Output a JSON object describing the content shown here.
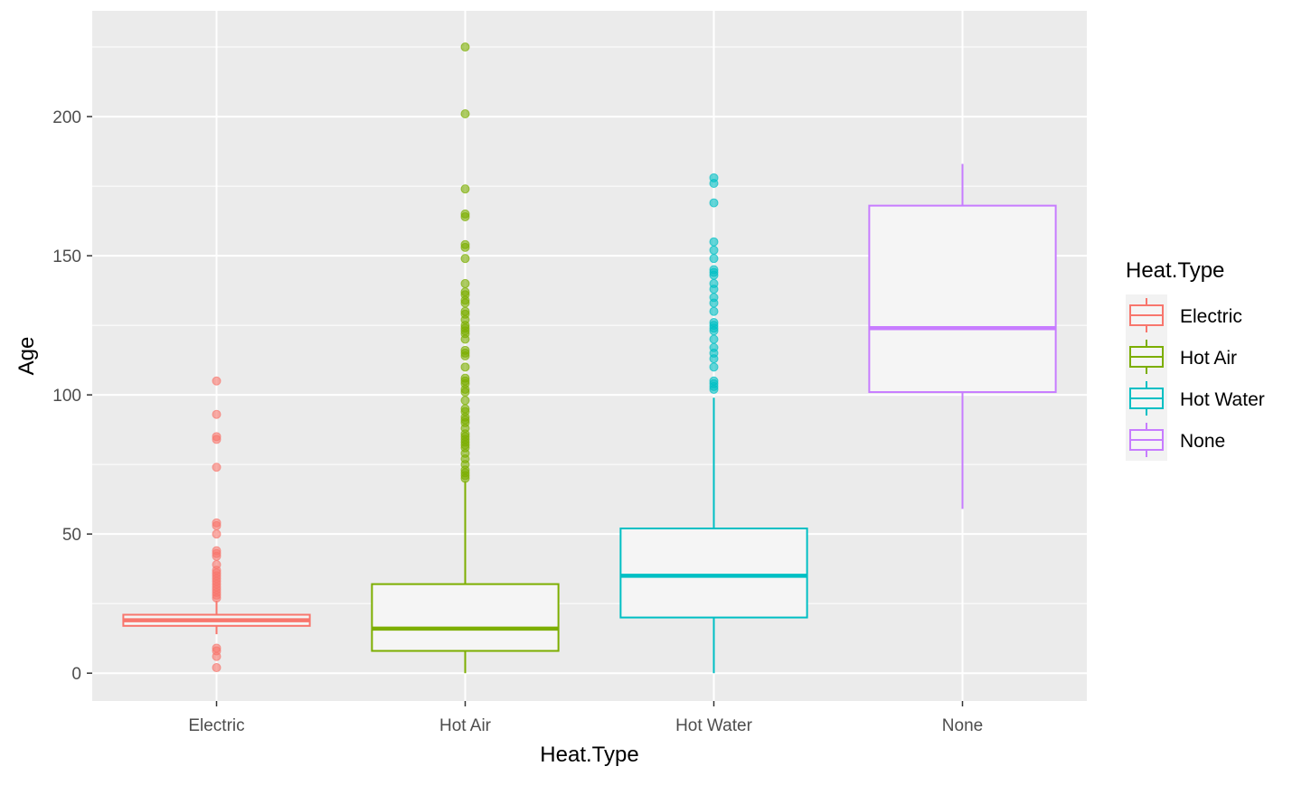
{
  "chart_data": {
    "type": "boxplot",
    "xlabel": "Heat.Type",
    "ylabel": "Age",
    "ylim": [
      -10,
      238
    ],
    "yticks": [
      0,
      50,
      100,
      150,
      200
    ],
    "grid": true,
    "legend": {
      "title": "Heat.Type",
      "placement": "right"
    },
    "categories": [
      "Electric",
      "Hot Air",
      "Hot Water",
      "None"
    ],
    "colors": [
      "#F8766D",
      "#7CAE00",
      "#00BFC4",
      "#C77CFF"
    ],
    "panel_background": "#EBEBEB",
    "box_fill": "#F5F5F5",
    "boxes": [
      {
        "category": "Electric",
        "lower_whisker": 14,
        "q1": 17,
        "median": 19,
        "q3": 21,
        "upper_whisker": 26,
        "outliers": [
          2,
          6,
          8,
          9,
          27,
          28,
          29,
          30,
          31,
          32,
          33,
          34,
          35,
          36,
          37,
          39,
          42,
          43,
          44,
          50,
          53,
          54,
          74,
          84,
          85,
          93,
          105
        ]
      },
      {
        "category": "Hot Air",
        "lower_whisker": 0,
        "q1": 8,
        "median": 16,
        "q3": 32,
        "upper_whisker": 69,
        "outliers": [
          70,
          71,
          72,
          73,
          75,
          77,
          79,
          81,
          82,
          83,
          84,
          85,
          86,
          88,
          90,
          91,
          92,
          94,
          95,
          98,
          101,
          102,
          104,
          105,
          106,
          110,
          114,
          115,
          116,
          120,
          122,
          123,
          124,
          125,
          127,
          129,
          130,
          133,
          134,
          136,
          137,
          140,
          149,
          153,
          154,
          164,
          165,
          174,
          201,
          225
        ]
      },
      {
        "category": "Hot Water",
        "lower_whisker": 0,
        "q1": 20,
        "median": 35,
        "q3": 52,
        "upper_whisker": 99,
        "outliers": [
          102,
          103,
          104,
          105,
          110,
          113,
          115,
          117,
          120,
          123,
          124,
          125,
          126,
          130,
          133,
          135,
          138,
          140,
          143,
          144,
          145,
          149,
          152,
          155,
          169,
          176,
          178
        ]
      },
      {
        "category": "None",
        "lower_whisker": 59,
        "q1": 101,
        "median": 124,
        "q3": 168,
        "upper_whisker": 183,
        "outliers": []
      }
    ]
  }
}
